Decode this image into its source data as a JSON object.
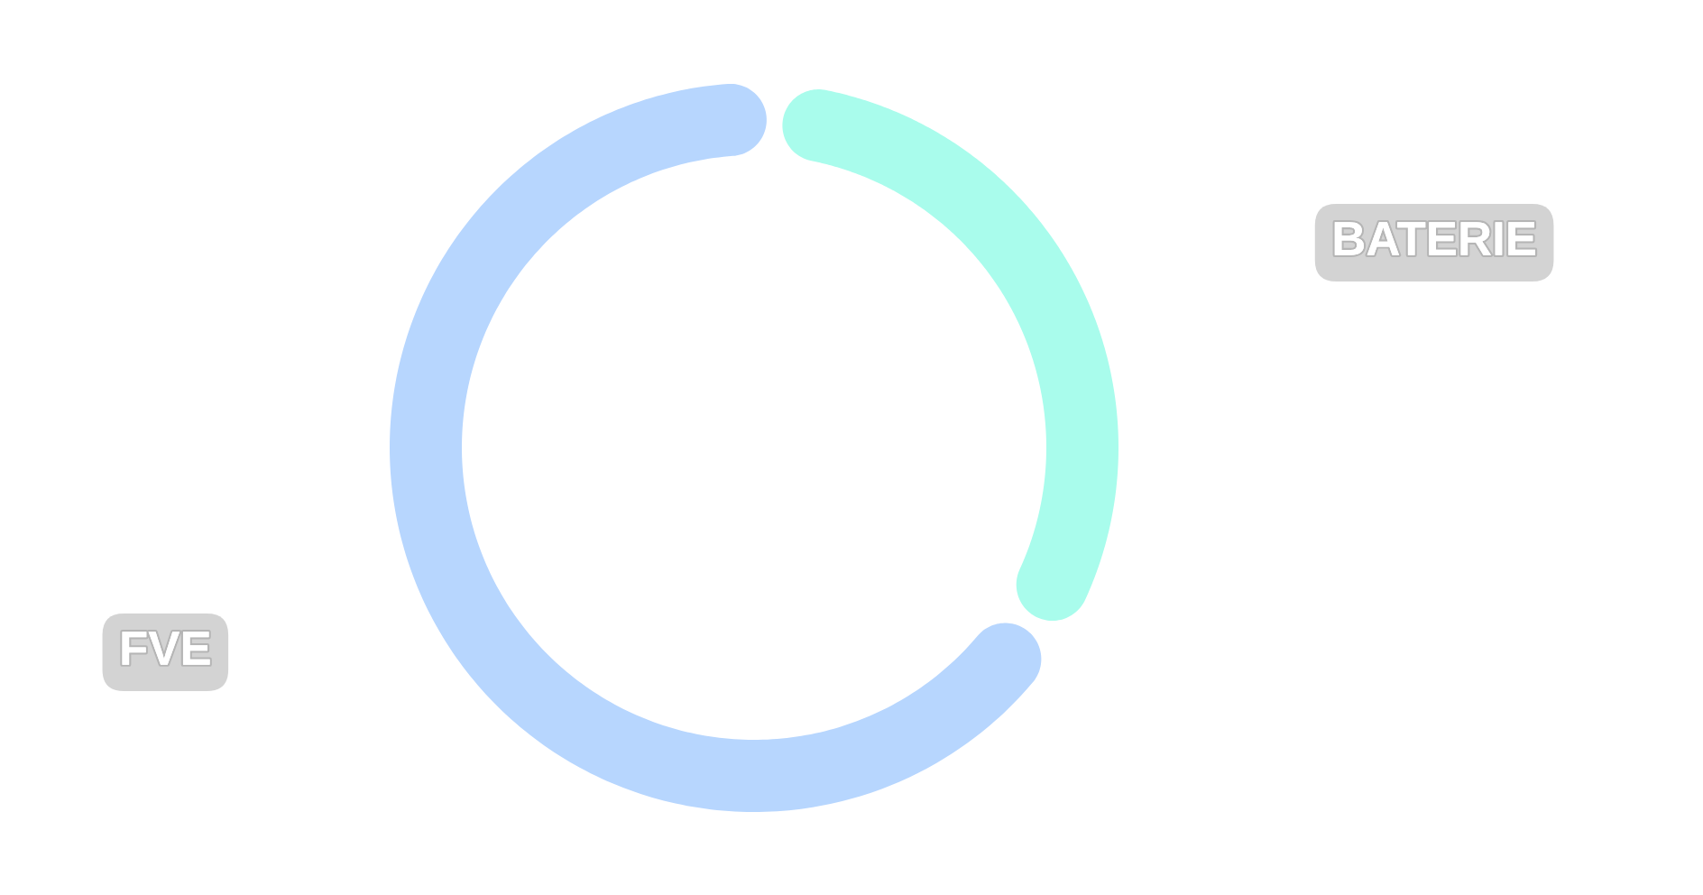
{
  "chart_data": {
    "type": "donut",
    "categories": [
      "BATERIE",
      "FVE"
    ],
    "values": [
      33,
      67
    ],
    "colors": [
      "#a9fcec",
      "#b7d6fe"
    ]
  }
}
